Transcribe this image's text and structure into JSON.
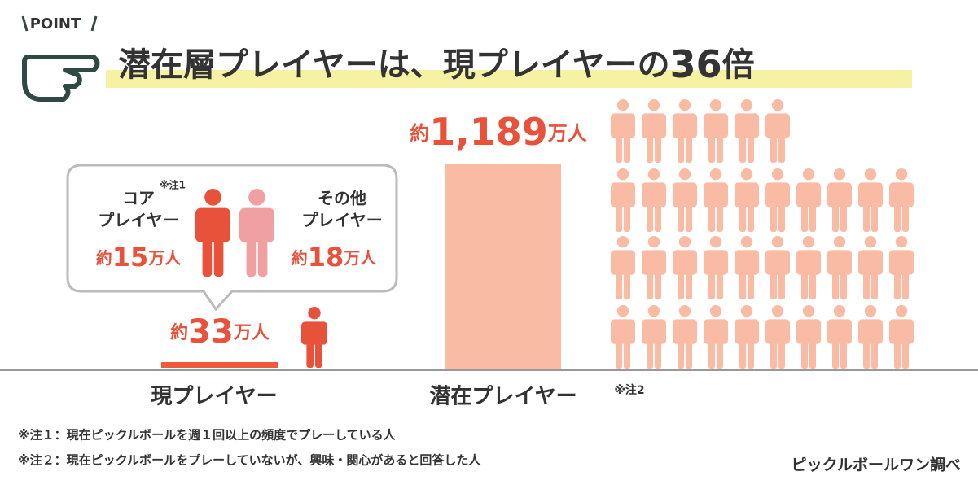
{
  "point_label": "POINT",
  "title": {
    "text": "潜在層プレイヤーは、現プレイヤーの",
    "number": 36,
    "suffix": "倍"
  },
  "current": {
    "label": "現プレイヤー",
    "prefix": "約",
    "value": 33,
    "unit": "万人",
    "breakdown": [
      {
        "name": [
          "コア",
          "プレイヤー"
        ],
        "note": "※注1",
        "prefix": "約",
        "value": 15,
        "unit": "万人"
      },
      {
        "name": [
          "その他",
          "プレイヤー"
        ],
        "prefix": "約",
        "value": 18,
        "unit": "万人"
      }
    ]
  },
  "potential": {
    "label": "潜在プレイヤー",
    "note": "※注2",
    "prefix": "約",
    "value": {
      "value": 1189,
      "label": "1,189"
    },
    "unit": "万人"
  },
  "footnotes": [
    "※注１：現在ピックルボールを週１回以上の頻度でプレーしている人",
    "※注２：現在ピックルボールをプレーしていないが、興味・関心があると回答した人"
  ],
  "source": "ピックルボールワン調べ"
}
